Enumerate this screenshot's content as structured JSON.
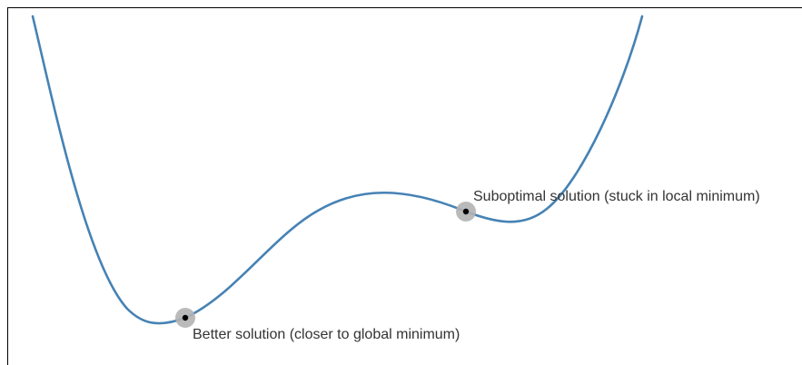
{
  "diagram": {
    "curve_color": "#4682b4",
    "halo_color": "#b3b3b3",
    "marker_color": "#000000",
    "text_color": "#333333",
    "axis_color": "#000000",
    "points": [
      {
        "id": "better",
        "label": "Better solution (closer to global minimum)"
      },
      {
        "id": "suboptimal",
        "label": "Suboptimal solution (stuck in local minimum)"
      }
    ]
  }
}
